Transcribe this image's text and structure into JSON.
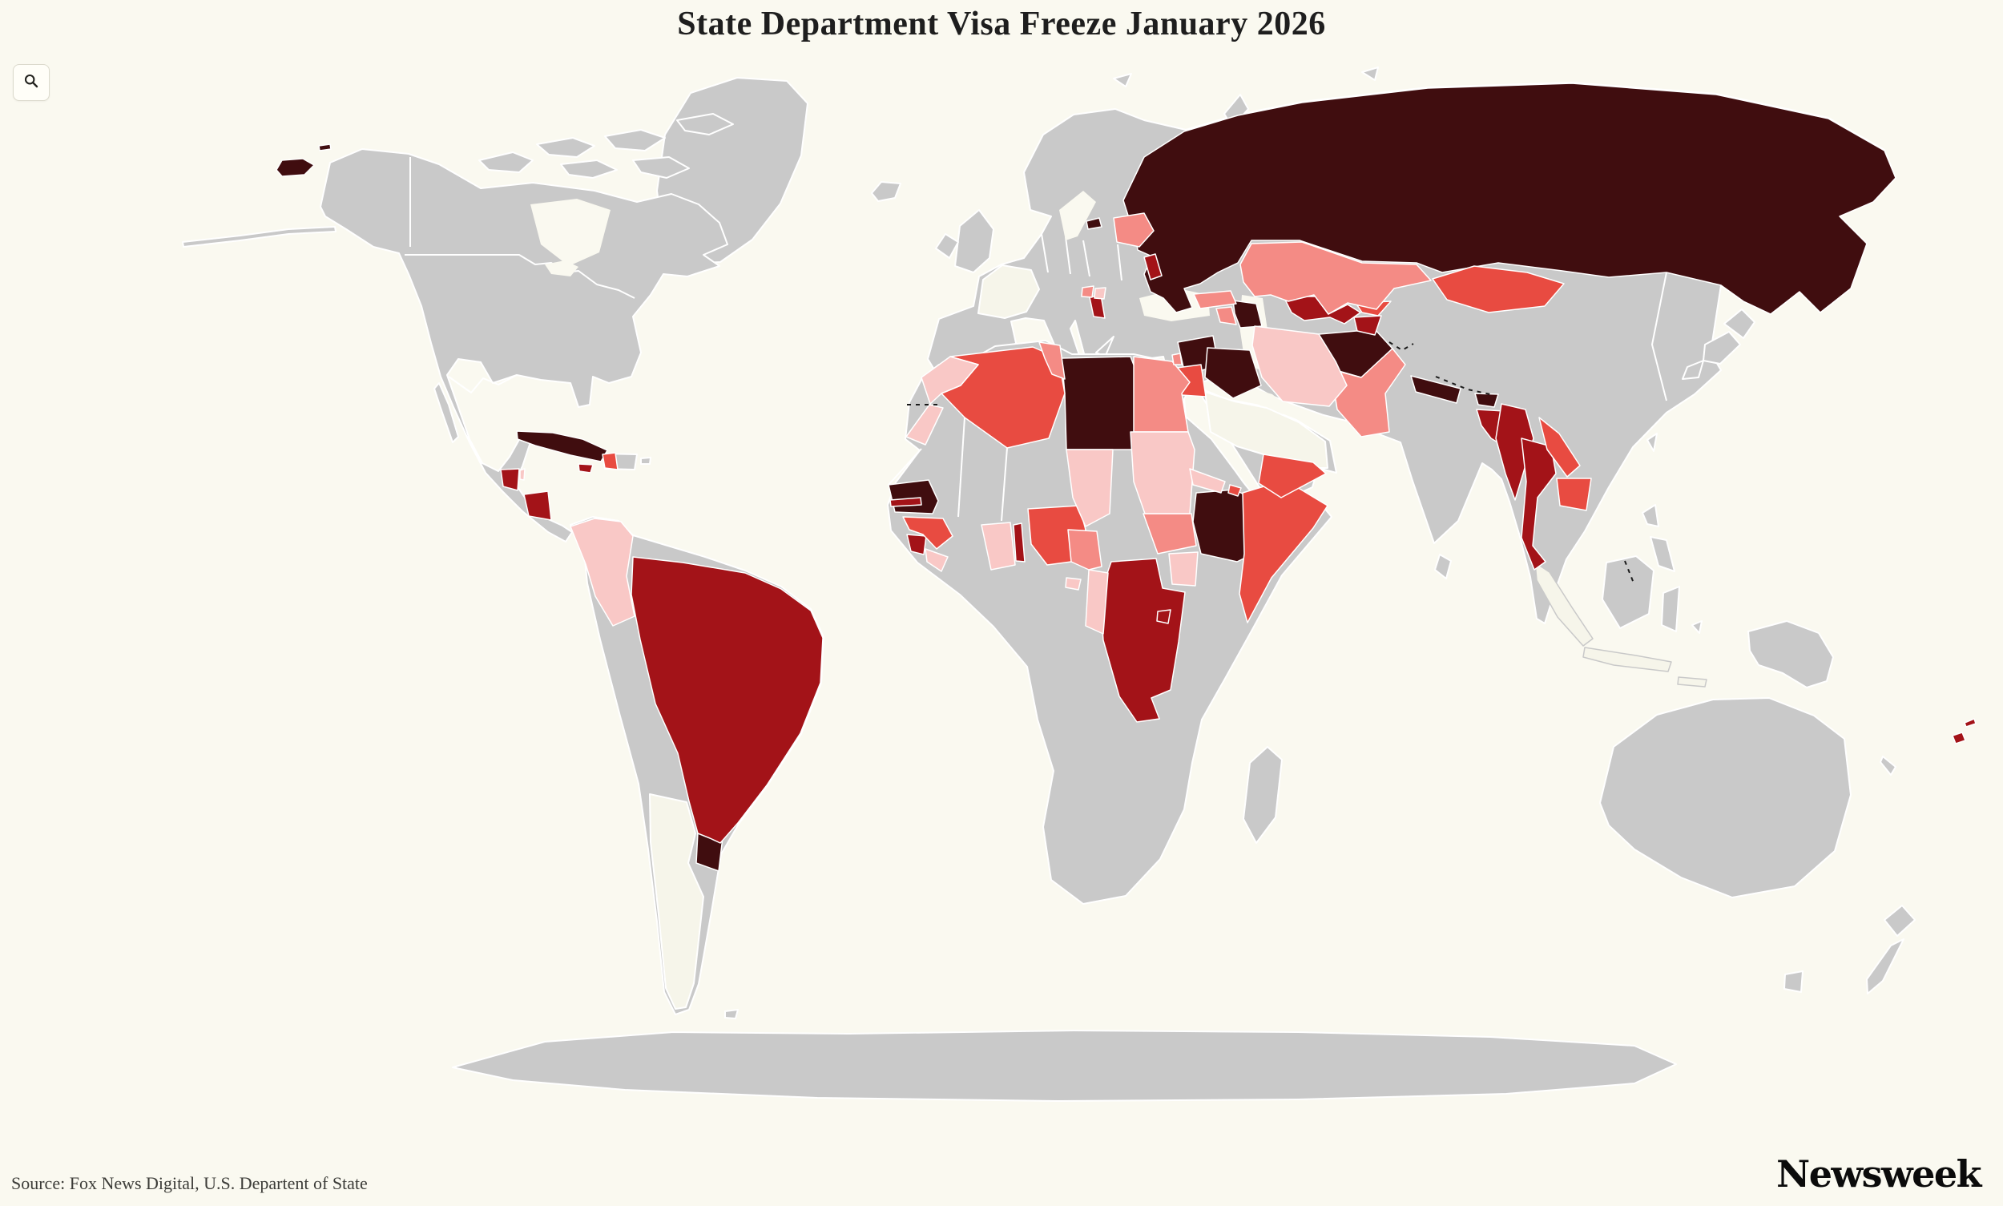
{
  "header": {
    "title": "State Department Visa Freeze January 2026"
  },
  "footer": {
    "source": "Source: Fox News Digital, U.S. Departent of State",
    "brand": "Newsweek"
  },
  "icons": {
    "zoom": "magnifier-icon"
  },
  "colors": {
    "background": "#faf9f0",
    "no_data_land": "#c9c9c9",
    "alt_land": "#f6f5ea",
    "border": "#ffffff",
    "title_text": "#1e1e1e",
    "source_text": "#3c3c38",
    "brand_text": "#0b0b0b"
  },
  "chart_data": {
    "type": "choropleth",
    "title": "State Department Visa Freeze January 2026",
    "legend_visible": false,
    "tiers": [
      {
        "id": "darkest",
        "color": "#400d0f"
      },
      {
        "id": "dark",
        "color": "#a31318"
      },
      {
        "id": "medium",
        "color": "#e84b41"
      },
      {
        "id": "salmon",
        "color": "#f48b85"
      },
      {
        "id": "light",
        "color": "#f9c8c6"
      },
      {
        "id": "no_data",
        "color": "#c9c9c9"
      }
    ],
    "countries": [
      {
        "name": "Russia",
        "tier": "darkest"
      },
      {
        "name": "Cuba",
        "tier": "darkest"
      },
      {
        "name": "Libya",
        "tier": "darkest"
      },
      {
        "name": "Ethiopia",
        "tier": "darkest"
      },
      {
        "name": "Afghanistan",
        "tier": "darkest"
      },
      {
        "name": "Syria",
        "tier": "darkest"
      },
      {
        "name": "Iraq",
        "tier": "darkest"
      },
      {
        "name": "Azerbaijan",
        "tier": "darkest"
      },
      {
        "name": "Senegal",
        "tier": "darkest"
      },
      {
        "name": "Uruguay",
        "tier": "darkest"
      },
      {
        "name": "Nepal",
        "tier": "darkest"
      },
      {
        "name": "Bhutan",
        "tier": "darkest"
      },
      {
        "name": "Brazil",
        "tier": "dark"
      },
      {
        "name": "Guatemala",
        "tier": "dark"
      },
      {
        "name": "Nicaragua",
        "tier": "dark"
      },
      {
        "name": "Jamaica",
        "tier": "dark"
      },
      {
        "name": "Gambia",
        "tier": "dark"
      },
      {
        "name": "Sierra Leone",
        "tier": "dark"
      },
      {
        "name": "Togo",
        "tier": "dark"
      },
      {
        "name": "DR Congo",
        "tier": "dark"
      },
      {
        "name": "Rwanda",
        "tier": "dark"
      },
      {
        "name": "Albania",
        "tier": "dark"
      },
      {
        "name": "Moldova",
        "tier": "dark"
      },
      {
        "name": "Uzbekistan",
        "tier": "dark"
      },
      {
        "name": "Tajikistan",
        "tier": "dark"
      },
      {
        "name": "Bangladesh",
        "tier": "dark"
      },
      {
        "name": "Myanmar",
        "tier": "dark"
      },
      {
        "name": "Thailand",
        "tier": "dark"
      },
      {
        "name": "Fiji",
        "tier": "dark"
      },
      {
        "name": "Algeria",
        "tier": "medium"
      },
      {
        "name": "Nigeria",
        "tier": "medium"
      },
      {
        "name": "Guinea",
        "tier": "medium"
      },
      {
        "name": "Somalia",
        "tier": "medium"
      },
      {
        "name": "Djibouti",
        "tier": "medium"
      },
      {
        "name": "Yemen",
        "tier": "medium"
      },
      {
        "name": "Jordan",
        "tier": "medium"
      },
      {
        "name": "Mongolia",
        "tier": "medium"
      },
      {
        "name": "Kyrgyzstan",
        "tier": "medium"
      },
      {
        "name": "Haiti",
        "tier": "medium"
      },
      {
        "name": "Laos",
        "tier": "medium"
      },
      {
        "name": "Cambodia",
        "tier": "medium"
      },
      {
        "name": "Kazakhstan",
        "tier": "salmon"
      },
      {
        "name": "Pakistan",
        "tier": "salmon"
      },
      {
        "name": "Egypt",
        "tier": "salmon"
      },
      {
        "name": "Tunisia",
        "tier": "salmon"
      },
      {
        "name": "Belarus",
        "tier": "salmon"
      },
      {
        "name": "Georgia",
        "tier": "salmon"
      },
      {
        "name": "Armenia",
        "tier": "salmon"
      },
      {
        "name": "Cameroon",
        "tier": "salmon"
      },
      {
        "name": "South Sudan",
        "tier": "salmon"
      },
      {
        "name": "Montenegro",
        "tier": "salmon"
      },
      {
        "name": "Lebanon",
        "tier": "salmon"
      },
      {
        "name": "Iran",
        "tier": "light"
      },
      {
        "name": "Colombia",
        "tier": "light"
      },
      {
        "name": "Sudan",
        "tier": "light"
      },
      {
        "name": "Ghana",
        "tier": "light"
      },
      {
        "name": "Chad",
        "tier": "light"
      },
      {
        "name": "Liberia",
        "tier": "light"
      },
      {
        "name": "Morocco",
        "tier": "light"
      },
      {
        "name": "Western Sahara",
        "tier": "light"
      },
      {
        "name": "Eritrea",
        "tier": "light"
      },
      {
        "name": "Uganda",
        "tier": "light"
      },
      {
        "name": "Kosovo",
        "tier": "light"
      },
      {
        "name": "Republic of Congo",
        "tier": "light"
      },
      {
        "name": "Equatorial Guinea",
        "tier": "light"
      },
      {
        "name": "Belize",
        "tier": "light"
      }
    ],
    "alt_fill_countries": [
      "France",
      "Argentina",
      "Saudi Arabia"
    ]
  }
}
